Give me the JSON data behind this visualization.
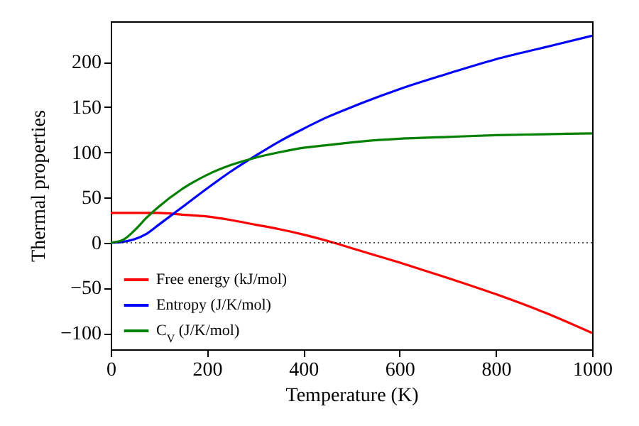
{
  "chart_data": {
    "type": "line",
    "xlabel": "Temperature (K)",
    "ylabel": "Thermal properties",
    "x": [
      0,
      25,
      50,
      75,
      100,
      150,
      200,
      250,
      300,
      350,
      400,
      450,
      500,
      600,
      700,
      800,
      900,
      1000
    ],
    "series": [
      {
        "name": "Free energy (kJ/mol)",
        "color": "#ff0000",
        "values": [
          33,
          33,
          33,
          33,
          33,
          31,
          29,
          25,
          20,
          15,
          9,
          2,
          -6,
          -22,
          -39,
          -57,
          -77,
          -100
        ]
      },
      {
        "name": "Entropy (J/K/mol)",
        "color": "#0000ff",
        "values": [
          0,
          1,
          4,
          10,
          20,
          40,
          60,
          79,
          96,
          112,
          126,
          139,
          150,
          170,
          187,
          203,
          216,
          229
        ]
      },
      {
        "name": "C$_{V}$ (J/K/mol)",
        "color": "#008000",
        "values": [
          0,
          3,
          14,
          28,
          40,
          60,
          75,
          86,
          94,
          100,
          105,
          108,
          111,
          115,
          117,
          119,
          120,
          121
        ]
      }
    ],
    "xlim": [
      0,
      1000
    ],
    "xticks": [
      0,
      200,
      400,
      600,
      800,
      1000
    ],
    "ylim": [
      -118,
      245
    ],
    "yticks": [
      -100,
      -50,
      0,
      50,
      100,
      150,
      200
    ],
    "ref_lines": [
      {
        "axis": "y",
        "value": 0,
        "color": "#000000",
        "line_style": "dotted"
      }
    ],
    "grid": false,
    "legend": "bottom left",
    "marker": "none",
    "line_style": "solid"
  }
}
